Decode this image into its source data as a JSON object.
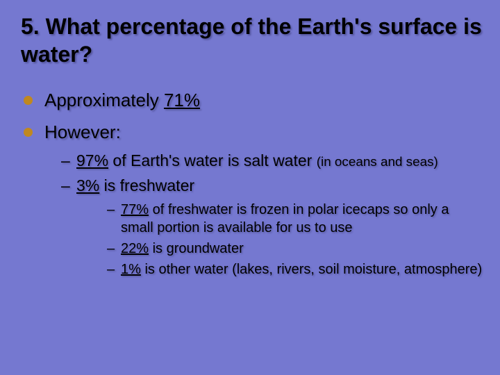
{
  "background_color": "#7578d0",
  "text_color": "#000000",
  "bullet_color": "#c08820",
  "font_family": "Verdana",
  "title_fontsize": 32,
  "lvl1_fontsize": 26,
  "lvl2_fontsize": 23,
  "lvl3_fontsize": 20,
  "title": {
    "number": "5.",
    "text": "What percentage of the Earth's surface is water?"
  },
  "bullets": [
    {
      "prefix": "Approximately ",
      "underlined": "71%",
      "suffix": ""
    },
    {
      "prefix": "",
      "underlined": "",
      "suffix": "However:"
    }
  ],
  "sub": [
    {
      "underlined": "97%",
      "after": " of Earth's water is salt water ",
      "paren": "(in oceans and seas)"
    },
    {
      "underlined": "3%",
      "after": " is freshwater",
      "paren": ""
    }
  ],
  "subsub": [
    {
      "underlined": "77%",
      "after": " of freshwater is frozen in polar icecaps so only a small portion is available for us to use"
    },
    {
      "underlined": "22%",
      "after": " is groundwater"
    },
    {
      "underlined": "1%",
      "after": " is other water (lakes, rivers, soil moisture, atmosphere)"
    }
  ]
}
